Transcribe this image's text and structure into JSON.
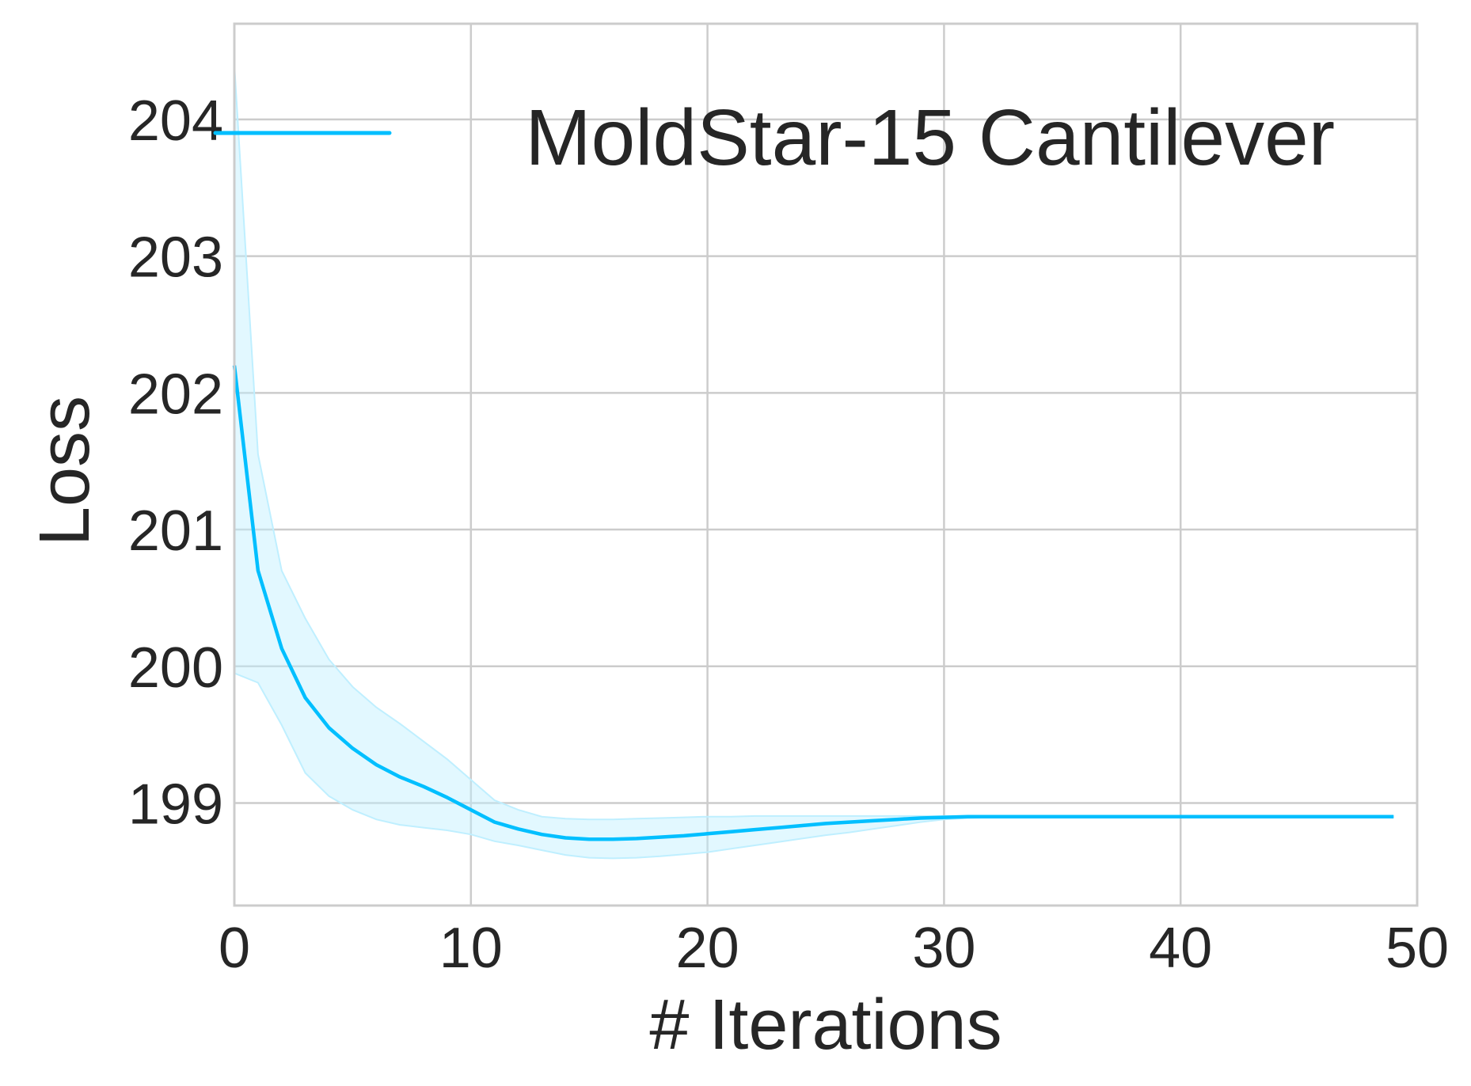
{
  "chart_data": {
    "type": "line",
    "xlabel": "# Iterations",
    "ylabel": "Loss",
    "xlim": [
      0,
      50
    ],
    "ylim": [
      198.25,
      204.7
    ],
    "xticks": [
      0,
      10,
      20,
      30,
      40,
      50
    ],
    "yticks": [
      199,
      200,
      201,
      202,
      203,
      204
    ],
    "grid": true,
    "legend_position": "top-right",
    "colors": {
      "line": "#00bfff",
      "band": "#bfefff",
      "grid": "#cccccc",
      "axes": "#cccccc"
    },
    "series": [
      {
        "name": "MoldStar-15 Cantilever",
        "x": [
          0,
          1,
          2,
          3,
          4,
          5,
          6,
          7,
          8,
          9,
          10,
          11,
          12,
          13,
          14,
          15,
          16,
          17,
          18,
          19,
          20,
          21,
          22,
          23,
          24,
          25,
          26,
          27,
          28,
          29,
          30,
          31,
          32,
          33,
          34,
          35,
          36,
          37,
          38,
          39,
          40,
          41,
          42,
          43,
          44,
          45,
          46,
          47,
          48,
          49
        ],
        "y": [
          202.2,
          200.7,
          200.13,
          199.77,
          199.55,
          199.4,
          199.28,
          199.19,
          199.12,
          199.04,
          198.95,
          198.86,
          198.81,
          198.77,
          198.745,
          198.735,
          198.735,
          198.74,
          198.75,
          198.76,
          198.775,
          198.79,
          198.805,
          198.82,
          198.835,
          198.85,
          198.86,
          198.87,
          198.88,
          198.89,
          198.895,
          198.9,
          198.9,
          198.9,
          198.9,
          198.9,
          198.9,
          198.9,
          198.9,
          198.9,
          198.9,
          198.9,
          198.9,
          198.9,
          198.9,
          198.9,
          198.9,
          198.9,
          198.9,
          198.9
        ],
        "upper": [
          204.4,
          201.55,
          200.7,
          200.35,
          200.05,
          199.85,
          199.7,
          199.58,
          199.45,
          199.32,
          199.17,
          199.02,
          198.95,
          198.9,
          198.885,
          198.88,
          198.88,
          198.885,
          198.89,
          198.895,
          198.9,
          198.9,
          198.905,
          198.905,
          198.905,
          198.905,
          198.905,
          198.905,
          198.905,
          198.905,
          198.905,
          198.905,
          198.905,
          198.905,
          198.905,
          198.905,
          198.905,
          198.905,
          198.905,
          198.905,
          198.905,
          198.905,
          198.905,
          198.905,
          198.905,
          198.905,
          198.905,
          198.905,
          198.905,
          198.905
        ],
        "lower": [
          199.95,
          199.88,
          199.57,
          199.22,
          199.05,
          198.95,
          198.88,
          198.84,
          198.82,
          198.8,
          198.77,
          198.72,
          198.69,
          198.655,
          198.62,
          198.6,
          198.595,
          198.6,
          198.61,
          198.625,
          198.64,
          198.665,
          198.69,
          198.715,
          198.74,
          198.765,
          198.785,
          198.81,
          198.835,
          198.86,
          198.88,
          198.89,
          198.895,
          198.895,
          198.895,
          198.895,
          198.895,
          198.895,
          198.895,
          198.895,
          198.895,
          198.895,
          198.895,
          198.895,
          198.895,
          198.895,
          198.895,
          198.895,
          198.895,
          198.895
        ]
      }
    ]
  }
}
